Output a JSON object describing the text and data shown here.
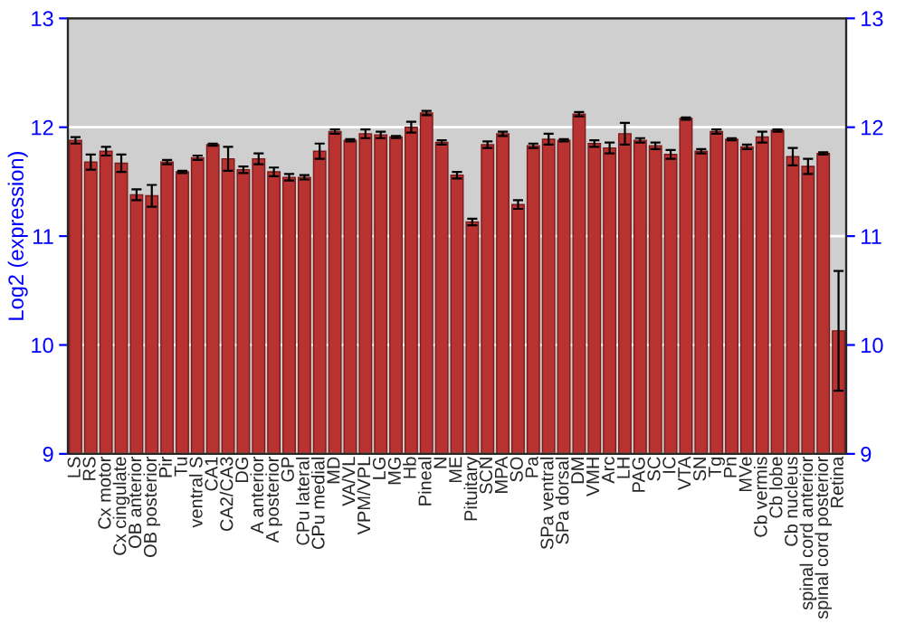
{
  "chart_data": {
    "type": "bar",
    "ylabel": "Log2 (expression)",
    "categories": [
      "LS",
      "RS",
      "Cx motor",
      "Cx cingulate",
      "OB anterior",
      "OB posterior",
      "Pir",
      "Tu",
      "ventral S",
      "CA1",
      "CA2/CA3",
      "DG",
      "A anterior",
      "A posterior",
      "GP",
      "CPu lateral",
      "CPu medial",
      "MD",
      "VA/VL",
      "VPM/VPL",
      "LG",
      "MG",
      "Hb",
      "Pineal",
      "N",
      "ME",
      "Pituitary",
      "SCN",
      "MPA",
      "SO",
      "Pa",
      "SPa ventral",
      "SPa dorsal",
      "DM",
      "VMH",
      "Arc",
      "LH",
      "PAG",
      "SC",
      "IC",
      "VTA",
      "SN",
      "Tg",
      "Pn",
      "MVe",
      "Cb vermis",
      "Cb lobe",
      "Cb nucleus",
      "spinal cord anterior",
      "spinal cord posterior",
      "Retina"
    ],
    "values": [
      11.88,
      11.68,
      11.78,
      11.67,
      11.38,
      11.37,
      11.68,
      11.59,
      11.72,
      11.84,
      11.71,
      11.61,
      11.71,
      11.59,
      11.54,
      11.54,
      11.78,
      11.96,
      11.88,
      11.94,
      11.93,
      11.91,
      12.0,
      12.13,
      11.86,
      11.56,
      11.13,
      11.84,
      11.94,
      11.29,
      11.83,
      11.89,
      11.88,
      12.12,
      11.85,
      11.81,
      11.94,
      11.88,
      11.83,
      11.75,
      12.08,
      11.78,
      11.96,
      11.89,
      11.82,
      11.91,
      11.97,
      11.73,
      11.64,
      11.76,
      10.13
    ],
    "errors": [
      0.03,
      0.07,
      0.04,
      0.08,
      0.05,
      0.1,
      0.02,
      0.01,
      0.02,
      0.01,
      0.11,
      0.03,
      0.05,
      0.04,
      0.03,
      0.02,
      0.07,
      0.02,
      0.01,
      0.04,
      0.03,
      0.01,
      0.05,
      0.02,
      0.02,
      0.03,
      0.03,
      0.03,
      0.02,
      0.04,
      0.02,
      0.05,
      0.01,
      0.02,
      0.03,
      0.05,
      0.1,
      0.02,
      0.03,
      0.04,
      0.01,
      0.02,
      0.02,
      0.01,
      0.02,
      0.05,
      0.01,
      0.08,
      0.07,
      0.01,
      0.55
    ],
    "color": "#b83232",
    "ylim": [
      9,
      13
    ],
    "yticks": [
      9,
      10,
      11,
      12,
      13
    ],
    "y2lim": [
      9,
      13
    ],
    "y2ticks": [
      9,
      10,
      11,
      12,
      13
    ],
    "grid": "y"
  }
}
